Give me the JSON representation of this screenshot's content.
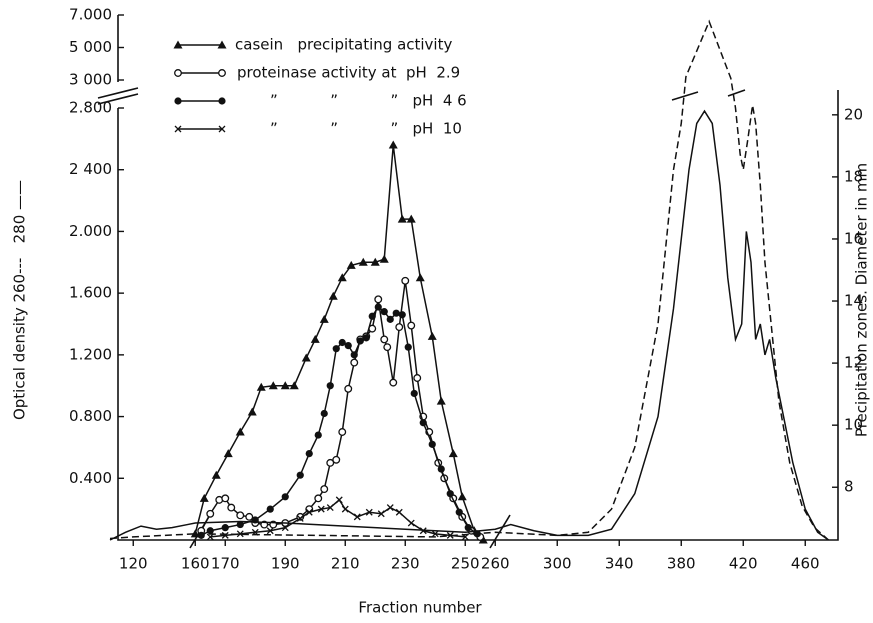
{
  "chart_data": {
    "type": "line",
    "x_label": "Fraction number",
    "y_label": "Optical density 260---   280 ——",
    "y2_label": "Precipitation zones. Diameter in mm",
    "xlim": [
      105,
      478
    ],
    "xticks": [
      120,
      160,
      170,
      190,
      210,
      230,
      250,
      260,
      300,
      340,
      380,
      420,
      460
    ],
    "ylim": [
      0,
      7000
    ],
    "yticks": [
      {
        "value": 400,
        "label": "0.400"
      },
      {
        "value": 800,
        "label": "0.800"
      },
      {
        "value": 1200,
        "label": "1.200"
      },
      {
        "value": 1600,
        "label": "1.600"
      },
      {
        "value": 2000,
        "label": "2.000"
      },
      {
        "value": 2400,
        "label": "2 400"
      },
      {
        "value": 2800,
        "label": "2.800"
      },
      {
        "value": 3000,
        "label": "3 000"
      },
      {
        "value": 5000,
        "label": "5 000"
      },
      {
        "value": 7000,
        "label": "7.000"
      }
    ],
    "y2lim": [
      6.3,
      20.8
    ],
    "y2ticks": [
      8,
      10,
      12,
      14,
      16,
      18,
      20
    ],
    "series": [
      {
        "name": "casein   precipitating activity",
        "color": "#111111",
        "marker": "triangle",
        "x": [
          160,
          163,
          167,
          171,
          175,
          179,
          182,
          186,
          190,
          193,
          197,
          200,
          203,
          206,
          209,
          212,
          216,
          220,
          223,
          226,
          229,
          232,
          235,
          239,
          242,
          246,
          249,
          253,
          256
        ],
        "values": [
          40,
          270,
          420,
          560,
          700,
          830,
          990,
          1000,
          1000,
          1000,
          1180,
          1300,
          1430,
          1580,
          1700,
          1780,
          1800,
          1800,
          1820,
          2560,
          2080,
          2080,
          1700,
          1320,
          900,
          560,
          280,
          60,
          0
        ]
      },
      {
        "name": "proteinase activity at  pH  2.9",
        "color": "#111111",
        "marker": "open-circle",
        "x": [
          162,
          165,
          168,
          170,
          172,
          175,
          178,
          180,
          183,
          186,
          190,
          195,
          198,
          201,
          203,
          205,
          207,
          209,
          211,
          213,
          215,
          217,
          219,
          221,
          223,
          224,
          226,
          228,
          230,
          232,
          234,
          236,
          238,
          241,
          243,
          246,
          249,
          252,
          255
        ],
        "values": [
          60,
          170,
          260,
          270,
          210,
          160,
          150,
          110,
          100,
          100,
          110,
          150,
          200,
          270,
          330,
          500,
          520,
          700,
          980,
          1150,
          1300,
          1320,
          1370,
          1560,
          1300,
          1250,
          1020,
          1380,
          1680,
          1390,
          1050,
          800,
          700,
          500,
          400,
          270,
          150,
          60,
          20
        ]
      },
      {
        "name": "”           ”           ”   pH  4 6",
        "color": "#111111",
        "marker": "filled-circle",
        "x": [
          162,
          165,
          170,
          175,
          180,
          185,
          190,
          195,
          198,
          201,
          203,
          205,
          207,
          209,
          211,
          213,
          215,
          217,
          219,
          221,
          223,
          225,
          227,
          229,
          231,
          233,
          236,
          239,
          242,
          245,
          248,
          251,
          254
        ],
        "values": [
          30,
          60,
          80,
          100,
          130,
          200,
          280,
          420,
          560,
          680,
          820,
          1000,
          1240,
          1280,
          1260,
          1200,
          1290,
          1310,
          1450,
          1510,
          1480,
          1430,
          1470,
          1460,
          1250,
          950,
          760,
          620,
          460,
          300,
          180,
          80,
          40
        ]
      },
      {
        "name": "”           ”           ”   pH  10",
        "color": "#111111",
        "marker": "cross",
        "x": [
          165,
          170,
          175,
          180,
          185,
          190,
          195,
          198,
          202,
          205,
          208,
          210,
          214,
          218,
          222,
          225,
          228,
          232,
          236,
          240,
          245,
          250
        ],
        "values": [
          20,
          30,
          40,
          50,
          60,
          80,
          140,
          180,
          200,
          210,
          260,
          200,
          150,
          180,
          170,
          210,
          180,
          110,
          60,
          40,
          30,
          20
        ]
      },
      {
        "name": "280",
        "color": "#111111",
        "marker": "none",
        "legend": false,
        "x": [
          105,
          115,
          125,
          135,
          145,
          155,
          160,
          175,
          190,
          210,
          230,
          250,
          260,
          270,
          285,
          300,
          320,
          335,
          350,
          365,
          375,
          385,
          390,
          395,
          400,
          405,
          410,
          415,
          419,
          422,
          425,
          428,
          431,
          434,
          437,
          441,
          446,
          452,
          460,
          468,
          475
        ],
        "values": [
          0,
          50,
          90,
          70,
          80,
          100,
          110,
          120,
          110,
          90,
          70,
          50,
          70,
          100,
          60,
          30,
          30,
          70,
          300,
          800,
          1500,
          2400,
          2700,
          2780,
          2700,
          2300,
          1700,
          1300,
          1400,
          2000,
          1800,
          1300,
          1400,
          1200,
          1300,
          1050,
          800,
          500,
          200,
          50,
          0
        ]
      },
      {
        "name": "260",
        "color": "#111111",
        "marker": "none",
        "dash": true,
        "legend": false,
        "x": [
          105,
          120,
          140,
          160,
          200,
          240,
          260,
          280,
          300,
          320,
          335,
          350,
          365,
          375,
          380,
          383,
          398,
          412,
          415,
          418,
          420,
          423,
          426,
          428,
          431,
          434,
          438,
          443,
          450,
          458,
          466,
          475
        ],
        "values": [
          10,
          20,
          30,
          40,
          30,
          20,
          50,
          40,
          30,
          50,
          200,
          600,
          1400,
          2400,
          2700,
          3200,
          6600,
          3100,
          2800,
          2500,
          2400,
          2600,
          2820,
          2700,
          2300,
          1800,
          1400,
          900,
          500,
          220,
          80,
          0
        ]
      }
    ]
  }
}
